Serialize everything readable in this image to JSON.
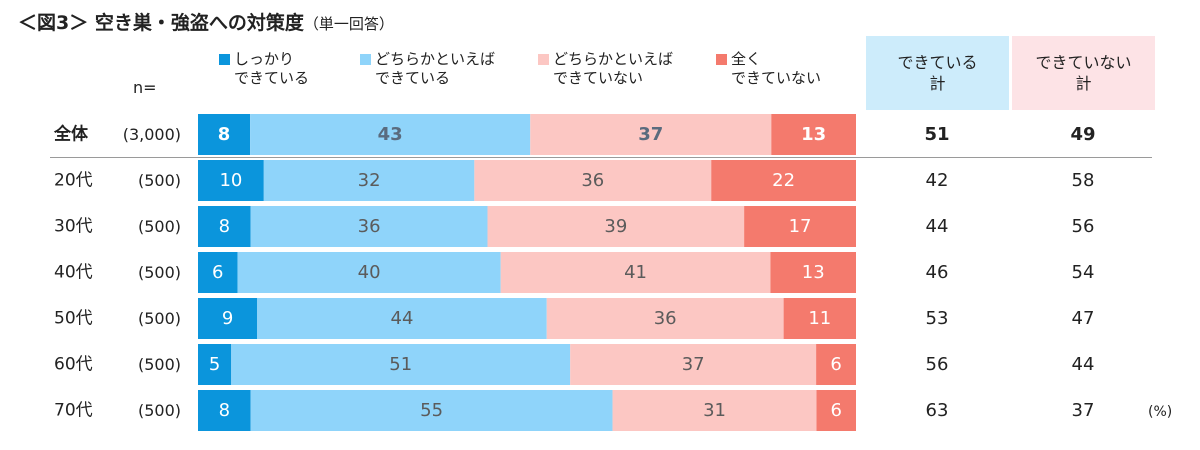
{
  "title": "＜図3＞ 空き巣・強盗への対策度",
  "subtitle": "（単一回答）",
  "n_label": "n=",
  "unit": "(%)",
  "colors": {
    "s1": "#0b95dc",
    "s2": "#8fd4fa",
    "s3": "#fcc7c3",
    "s4": "#f47a6d",
    "head_can_bg": "#cdecfb",
    "head_cannot_bg": "#fde3e6",
    "total_text": "#5a6b7e"
  },
  "chart_data": {
    "type": "bar",
    "orientation": "horizontal",
    "stacked": true,
    "normalized": true,
    "title": "＜図3＞ 空き巣・強盗への対策度（単一回答）",
    "categories": [
      "全体",
      "20代",
      "30代",
      "40代",
      "50代",
      "60代",
      "70代"
    ],
    "sample_sizes": [
      "(3,000)",
      "(500)",
      "(500)",
      "(500)",
      "(500)",
      "(500)",
      "(500)"
    ],
    "series": [
      {
        "name": "しっかり\nできている",
        "values": [
          8,
          10,
          8,
          6,
          9,
          5,
          8
        ]
      },
      {
        "name": "どちらかといえば\nできている",
        "values": [
          43,
          32,
          36,
          40,
          44,
          51,
          55
        ]
      },
      {
        "name": "どちらかといえば\nできていない",
        "values": [
          37,
          36,
          39,
          41,
          36,
          37,
          31
        ]
      },
      {
        "name": "全く\nできていない",
        "values": [
          13,
          22,
          17,
          13,
          11,
          6,
          6
        ]
      }
    ],
    "summary_columns": [
      {
        "name": "できている\n計",
        "values": [
          51,
          42,
          44,
          46,
          53,
          56,
          63
        ]
      },
      {
        "name": "できていない\n計",
        "values": [
          49,
          58,
          56,
          54,
          47,
          44,
          37
        ]
      }
    ],
    "unit": "%",
    "xlim": [
      0,
      100
    ]
  }
}
